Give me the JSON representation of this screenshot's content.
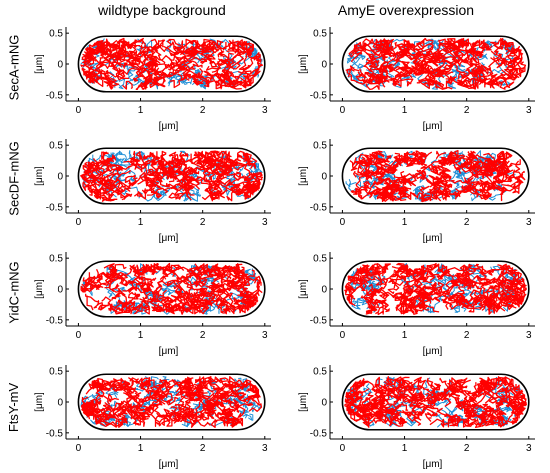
{
  "figure": {
    "column_titles": [
      "wildtype background",
      "AmyE overexpression"
    ],
    "row_labels": [
      "SecA-mNG",
      "SecDF-mNG",
      "YidC-mNG",
      "FtsY-mV"
    ]
  },
  "colors": {
    "track_blue": "#1f8fd6",
    "track_red": "#ff0000",
    "outline": "#000000"
  },
  "chart_data": [
    {
      "type": "scatter",
      "row": "SecA-mNG",
      "column": "wildtype background",
      "xlabel": "[μm]",
      "ylabel": "[μm]",
      "xlim": [
        -0.2,
        3.1
      ],
      "ylim": [
        -0.6,
        0.6
      ],
      "xticks": [
        0,
        1,
        2,
        3
      ],
      "yticks": [
        -0.5,
        0,
        0.5
      ],
      "cell_outline": {
        "x_range": [
          0,
          3
        ],
        "y_range": [
          -0.45,
          0.45
        ]
      },
      "series": [
        {
          "name": "",
          "color": "#1f8fd6"
        },
        {
          "name": "",
          "color": "#ff0000"
        }
      ]
    },
    {
      "type": "scatter",
      "row": "SecA-mNG",
      "column": "AmyE overexpression",
      "xlabel": "[μm]",
      "ylabel": "[μm]",
      "xlim": [
        -0.2,
        3.1
      ],
      "ylim": [
        -0.6,
        0.6
      ],
      "xticks": [
        0,
        1,
        2,
        3
      ],
      "yticks": [
        -0.5,
        0,
        0.5
      ],
      "cell_outline": {
        "x_range": [
          0,
          3
        ],
        "y_range": [
          -0.45,
          0.45
        ]
      },
      "series": [
        {
          "name": "",
          "color": "#1f8fd6"
        },
        {
          "name": "",
          "color": "#ff0000"
        }
      ]
    },
    {
      "type": "scatter",
      "row": "SecDF-mNG",
      "column": "wildtype background",
      "xlabel": "[μm]",
      "ylabel": "[μm]",
      "xlim": [
        -0.2,
        3.1
      ],
      "ylim": [
        -0.6,
        0.6
      ],
      "xticks": [
        0,
        1,
        2,
        3
      ],
      "yticks": [
        -0.5,
        0,
        0.5
      ],
      "cell_outline": {
        "x_range": [
          0,
          3
        ],
        "y_range": [
          -0.45,
          0.45
        ]
      },
      "series": [
        {
          "name": "",
          "color": "#1f8fd6"
        },
        {
          "name": "",
          "color": "#ff0000"
        }
      ]
    },
    {
      "type": "scatter",
      "row": "SecDF-mNG",
      "column": "AmyE overexpression",
      "xlabel": "[μm]",
      "ylabel": "[μm]",
      "xlim": [
        -0.2,
        3.1
      ],
      "ylim": [
        -0.6,
        0.6
      ],
      "xticks": [
        0,
        1,
        2,
        3
      ],
      "yticks": [
        -0.5,
        0,
        0.5
      ],
      "cell_outline": {
        "x_range": [
          0,
          3
        ],
        "y_range": [
          -0.45,
          0.45
        ]
      },
      "series": [
        {
          "name": "",
          "color": "#1f8fd6"
        },
        {
          "name": "",
          "color": "#ff0000"
        }
      ]
    },
    {
      "type": "scatter",
      "row": "YidC-mNG",
      "column": "wildtype background",
      "xlabel": "[μm]",
      "ylabel": "[μm]",
      "xlim": [
        -0.2,
        3.1
      ],
      "ylim": [
        -0.6,
        0.6
      ],
      "xticks": [
        0,
        1,
        2,
        3
      ],
      "yticks": [
        -0.5,
        0,
        0.5
      ],
      "cell_outline": {
        "x_range": [
          0,
          3
        ],
        "y_range": [
          -0.45,
          0.45
        ]
      },
      "series": [
        {
          "name": "",
          "color": "#1f8fd6"
        },
        {
          "name": "",
          "color": "#ff0000"
        }
      ]
    },
    {
      "type": "scatter",
      "row": "YidC-mNG",
      "column": "AmyE overexpression",
      "xlabel": "[μm]",
      "ylabel": "[μm]",
      "xlim": [
        -0.2,
        3.1
      ],
      "ylim": [
        -0.6,
        0.6
      ],
      "xticks": [
        0,
        1,
        2,
        3
      ],
      "yticks": [
        -0.5,
        0,
        0.5
      ],
      "cell_outline": {
        "x_range": [
          0,
          3
        ],
        "y_range": [
          -0.45,
          0.45
        ]
      },
      "series": [
        {
          "name": "",
          "color": "#1f8fd6"
        },
        {
          "name": "",
          "color": "#ff0000"
        }
      ]
    },
    {
      "type": "scatter",
      "row": "FtsY-mV",
      "column": "wildtype background",
      "xlabel": "[μm]",
      "ylabel": "[μm]",
      "xlim": [
        -0.2,
        3.1
      ],
      "ylim": [
        -0.6,
        0.6
      ],
      "xticks": [
        0,
        1,
        2,
        3
      ],
      "yticks": [
        -0.5,
        0,
        0.5
      ],
      "cell_outline": {
        "x_range": [
          0,
          3
        ],
        "y_range": [
          -0.45,
          0.45
        ]
      },
      "series": [
        {
          "name": "",
          "color": "#1f8fd6"
        },
        {
          "name": "",
          "color": "#ff0000"
        }
      ]
    },
    {
      "type": "scatter",
      "row": "FtsY-mV",
      "column": "AmyE overexpression",
      "xlabel": "[μm]",
      "ylabel": "[μm]",
      "xlim": [
        -0.2,
        3.1
      ],
      "ylim": [
        -0.6,
        0.6
      ],
      "xticks": [
        0,
        1,
        2,
        3
      ],
      "yticks": [
        -0.5,
        0,
        0.5
      ],
      "cell_outline": {
        "x_range": [
          0,
          3
        ],
        "y_range": [
          -0.45,
          0.45
        ]
      },
      "series": [
        {
          "name": "",
          "color": "#1f8fd6"
        },
        {
          "name": "",
          "color": "#ff0000"
        }
      ]
    }
  ]
}
